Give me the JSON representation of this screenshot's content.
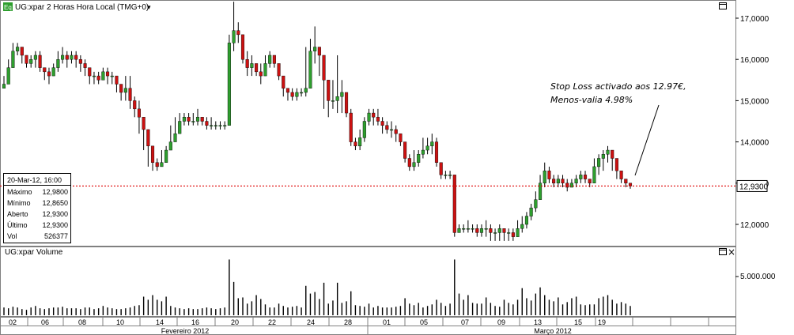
{
  "window": {
    "badge": "Eq",
    "title": "UG:xpar 2 Horas Hora Local (TMG+0)",
    "dropdown_glyph": "▾",
    "maximize_icon": "maximize-icon"
  },
  "volume_panel": {
    "title": "UG:xpar Volume",
    "maximize_icon": "maximize-icon",
    "close_icon": "close-icon",
    "close_glyph": "×",
    "y_tick": "5.000.000"
  },
  "info_box": {
    "date": "20-Mar-12, 16:00",
    "rows": [
      {
        "label": "Máximo",
        "value": "12,9800"
      },
      {
        "label": "Mínimo",
        "value": "12,8650"
      },
      {
        "label": "Aberto",
        "value": "12,9300"
      },
      {
        "label": "Último",
        "value": "12,9300"
      },
      {
        "label": "Vol",
        "value": "526377"
      }
    ]
  },
  "annotation": {
    "line1": "Stop Loss activado aos 12.97€,",
    "line2": "Menos-valia 4.98%"
  },
  "last_price_label": "12,9300",
  "colors": {
    "up": "#2e9e2e",
    "down": "#cc1111",
    "wick": "#000000",
    "ref_line": "#dd0000",
    "volume": "#000000",
    "grid": "#999999"
  },
  "chart_data": {
    "type": "candlestick",
    "ylim": [
      11.5,
      17.4
    ],
    "y_ticks": [
      "12,0000",
      "13,0000",
      "14,0000",
      "15,0000",
      "16,0000",
      "17,0000"
    ],
    "reference_line": 12.93,
    "x_day_labels": [
      "02",
      "06",
      "08",
      "10",
      "14",
      "16",
      "20",
      "22",
      "24",
      "28",
      "01",
      "05",
      "07",
      "09",
      "13",
      "15",
      "19"
    ],
    "x_month_labels": [
      "Fevereiro 2012",
      "Março 2012"
    ],
    "close": [
      15.4,
      15.8,
      16.2,
      16.3,
      16.1,
      15.9,
      16.0,
      16.1,
      15.8,
      15.7,
      15.6,
      15.8,
      16.0,
      16.1,
      16.0,
      16.1,
      16.0,
      15.9,
      15.8,
      15.6,
      15.6,
      15.5,
      15.7,
      15.6,
      15.6,
      15.4,
      15.2,
      15.3,
      15.0,
      14.8,
      14.6,
      14.3,
      13.9,
      13.5,
      13.4,
      13.5,
      13.8,
      14.0,
      14.2,
      14.5,
      14.6,
      14.5,
      14.5,
      14.6,
      14.5,
      14.4,
      14.4,
      14.4,
      14.4,
      14.4,
      16.4,
      16.7,
      16.6,
      16.0,
      15.8,
      15.9,
      15.7,
      15.6,
      15.9,
      16.1,
      15.9,
      15.6,
      15.3,
      15.2,
      15.1,
      15.2,
      15.2,
      15.3,
      16.2,
      16.3,
      16.1,
      15.5,
      15.0,
      15.0,
      15.1,
      15.2,
      14.7,
      14.0,
      13.9,
      14.1,
      14.5,
      14.7,
      14.6,
      14.5,
      14.4,
      14.3,
      14.3,
      14.2,
      14.0,
      13.6,
      13.4,
      13.5,
      13.7,
      13.8,
      13.9,
      14.0,
      13.5,
      13.2,
      13.2,
      13.2,
      11.8,
      11.9,
      11.9,
      11.9,
      11.9,
      11.8,
      11.9,
      11.9,
      11.8,
      11.8,
      11.9,
      11.8,
      11.8,
      11.7,
      11.9,
      12.0,
      12.2,
      12.4,
      12.6,
      13.0,
      13.3,
      13.1,
      13.0,
      13.1,
      13.0,
      12.9,
      13.0,
      13.1,
      13.2,
      13.1,
      13.0,
      13.4,
      13.6,
      13.7,
      13.8,
      13.6,
      13.3,
      13.1,
      13.0,
      12.93
    ],
    "high": [
      15.6,
      16.0,
      16.4,
      16.4,
      16.3,
      16.0,
      16.1,
      16.2,
      16.2,
      15.8,
      15.8,
      15.9,
      16.2,
      16.3,
      16.2,
      16.2,
      16.2,
      16.1,
      16.0,
      15.8,
      15.7,
      15.7,
      15.8,
      15.8,
      15.7,
      15.6,
      15.4,
      15.6,
      15.6,
      15.1,
      15.0,
      14.6,
      14.1,
      13.7,
      13.6,
      13.8,
      13.9,
      14.4,
      14.6,
      14.7,
      14.7,
      14.7,
      14.7,
      14.8,
      14.6,
      14.6,
      14.6,
      14.5,
      14.5,
      14.5,
      16.6,
      17.4,
      16.9,
      16.6,
      16.2,
      16.1,
      15.9,
      15.9,
      16.1,
      16.2,
      16.1,
      15.9,
      15.6,
      15.3,
      15.3,
      15.3,
      15.3,
      16.3,
      16.5,
      16.8,
      16.3,
      16.1,
      15.3,
      15.5,
      16.1,
      15.5,
      15.0,
      14.8,
      14.1,
      14.3,
      14.6,
      14.8,
      14.8,
      14.8,
      14.6,
      14.5,
      14.5,
      14.4,
      14.2,
      14.0,
      13.7,
      13.8,
      13.8,
      14.1,
      14.1,
      14.2,
      14.1,
      13.5,
      13.3,
      13.3,
      12.0,
      12.0,
      12.0,
      12.1,
      12.0,
      12.0,
      12.0,
      12.1,
      12.0,
      11.9,
      12.0,
      11.9,
      11.9,
      11.9,
      12.1,
      12.2,
      12.3,
      12.5,
      12.8,
      13.2,
      13.5,
      13.4,
      13.2,
      13.2,
      13.2,
      13.1,
      13.1,
      13.2,
      13.3,
      13.3,
      13.1,
      13.6,
      13.7,
      13.8,
      13.9,
      13.8,
      13.5,
      13.3,
      13.1,
      12.98
    ],
    "low": [
      15.3,
      15.4,
      15.8,
      16.1,
      15.9,
      15.8,
      15.8,
      15.8,
      15.7,
      15.5,
      15.4,
      15.6,
      15.7,
      15.9,
      15.8,
      15.9,
      15.8,
      15.7,
      15.6,
      15.4,
      15.4,
      15.4,
      15.5,
      15.4,
      15.4,
      15.2,
      15.0,
      15.0,
      14.8,
      14.6,
      14.2,
      13.8,
      13.4,
      13.3,
      13.3,
      13.4,
      13.5,
      13.8,
      14.0,
      14.3,
      14.4,
      14.4,
      14.4,
      14.4,
      14.4,
      14.3,
      14.3,
      14.3,
      14.3,
      14.3,
      15.3,
      16.2,
      16.4,
      15.9,
      15.6,
      15.6,
      15.6,
      15.4,
      15.6,
      15.8,
      15.8,
      15.5,
      15.1,
      15.0,
      15.0,
      15.0,
      15.1,
      15.1,
      15.6,
      15.9,
      15.6,
      14.8,
      14.6,
      14.8,
      14.7,
      14.7,
      14.6,
      13.9,
      13.8,
      13.8,
      14.0,
      14.4,
      14.4,
      14.4,
      14.2,
      14.2,
      14.1,
      14.0,
      13.9,
      13.5,
      13.3,
      13.3,
      13.4,
      13.6,
      13.7,
      13.7,
      13.4,
      13.1,
      13.1,
      13.1,
      11.7,
      11.8,
      11.8,
      11.8,
      11.8,
      11.7,
      11.7,
      11.7,
      11.6,
      11.6,
      11.6,
      11.6,
      11.6,
      11.6,
      11.7,
      11.8,
      11.9,
      12.1,
      12.3,
      12.6,
      12.9,
      13.0,
      12.9,
      12.9,
      12.9,
      12.8,
      12.9,
      12.9,
      13.0,
      13.0,
      12.9,
      13.0,
      13.2,
      13.3,
      13.5,
      13.3,
      13.1,
      13.0,
      12.9,
      12.865
    ],
    "volume": [
      1.0,
      0.9,
      1.1,
      1.0,
      0.8,
      0.7,
      1.0,
      1.2,
      0.9,
      0.8,
      0.9,
      1.0,
      1.0,
      1.1,
      0.9,
      0.9,
      0.9,
      0.8,
      1.0,
      1.0,
      0.8,
      0.9,
      1.2,
      1.0,
      0.9,
      0.8,
      0.8,
      0.9,
      1.0,
      1.2,
      1.3,
      2.4,
      2.0,
      2.6,
      2.0,
      1.8,
      2.4,
      1.2,
      1.0,
      0.9,
      0.8,
      0.9,
      0.8,
      0.8,
      0.9,
      1.0,
      0.9,
      0.8,
      0.9,
      1.0,
      7.2,
      4.3,
      2.2,
      2.3,
      1.5,
      1.8,
      2.6,
      2.1,
      1.4,
      1.0,
      1.0,
      1.5,
      1.2,
      1.0,
      1.1,
      1.2,
      1.0,
      3.8,
      2.8,
      3.0,
      2.1,
      4.2,
      1.5,
      1.9,
      4.2,
      1.6,
      1.8,
      3.1,
      1.3,
      1.2,
      1.1,
      1.5,
      1.0,
      1.2,
      1.0,
      1.0,
      1.0,
      1.1,
      1.2,
      2.2,
      1.5,
      1.3,
      1.6,
      1.0,
      1.2,
      1.4,
      2.0,
      1.6,
      1.2,
      1.5,
      7.2,
      2.8,
      2.0,
      2.6,
      1.6,
      1.5,
      1.5,
      2.3,
      1.6,
      1.2,
      1.1,
      2.0,
      1.6,
      1.4,
      2.0,
      3.5,
      2.2,
      1.9,
      2.8,
      3.6,
      2.6,
      2.0,
      1.8,
      2.3,
      1.4,
      1.7,
      2.2,
      2.4,
      1.4,
      1.3,
      1.4,
      1.4,
      2.2,
      2.4,
      2.6,
      2.0,
      1.5,
      1.7,
      1.5,
      1.2
    ]
  }
}
